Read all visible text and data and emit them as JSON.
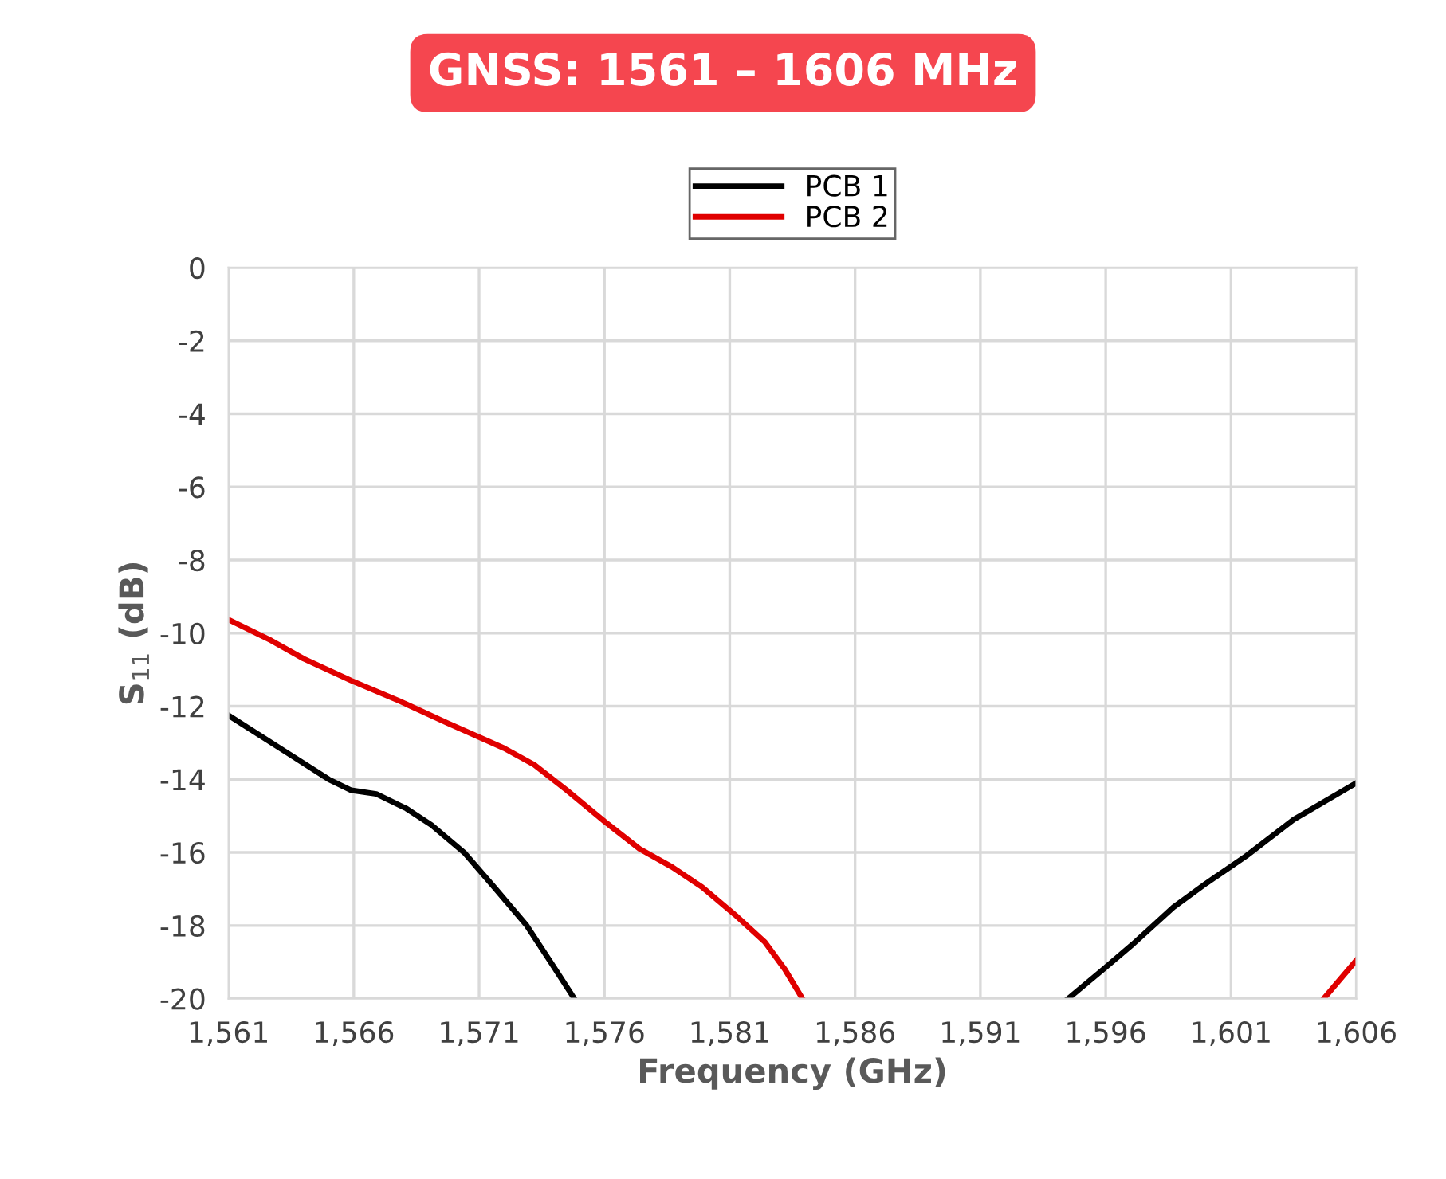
{
  "chart_data": {
    "type": "line",
    "title": "GNSS: 1561 – 1606 MHz",
    "xlabel": "Frequency (GHz)",
    "ylabel": "S$_{11}$ (dB)",
    "xlim": [
      1561,
      1606
    ],
    "ylim": [
      -20,
      0
    ],
    "xticks": [
      {
        "value": 1561,
        "label": "1,561"
      },
      {
        "value": 1566,
        "label": "1,566"
      },
      {
        "value": 1571,
        "label": "1,571"
      },
      {
        "value": 1576,
        "label": "1,576"
      },
      {
        "value": 1581,
        "label": "1,581"
      },
      {
        "value": 1586,
        "label": "1,586"
      },
      {
        "value": 1591,
        "label": "1,591"
      },
      {
        "value": 1596,
        "label": "1,596"
      },
      {
        "value": 1601,
        "label": "1,601"
      },
      {
        "value": 1606,
        "label": "1,606"
      }
    ],
    "yticks": [
      -20,
      -18,
      -16,
      -14,
      -12,
      -10,
      -8,
      -6,
      -4,
      -2,
      0
    ],
    "grid": true,
    "legend": "top",
    "marker": "none",
    "line_style": "solid",
    "series": [
      {
        "name": "PCB 1",
        "color": "#000000",
        "x": [
          1561,
          1563.4,
          1565.0,
          1565.9,
          1566.9,
          1568.1,
          1569.1,
          1570.4,
          1571.6,
          1572.9,
          1573.9,
          1574.8,
          1584,
          1594.5,
          1595.9,
          1597.1,
          1598.7,
          1600.0,
          1601.6,
          1603.5,
          1606
        ],
        "values": [
          -12.25,
          -13.3,
          -14.0,
          -14.3,
          -14.4,
          -14.8,
          -15.25,
          -16.0,
          -16.95,
          -18.0,
          -19.05,
          -20,
          null,
          -20,
          -19.2,
          -18.5,
          -17.5,
          -16.85,
          -16.1,
          -15.1,
          -14.1
        ]
      },
      {
        "name": "PCB 2",
        "color": "#e00000",
        "x": [
          1561,
          1562.7,
          1564.0,
          1565.9,
          1567.8,
          1569.7,
          1572.0,
          1573.2,
          1574.5,
          1576.0,
          1577.4,
          1578.7,
          1579.9,
          1581.2,
          1582.4,
          1583.2,
          1583.9,
          1594,
          1604.7,
          1606
        ],
        "values": [
          -9.63,
          -10.2,
          -10.7,
          -11.3,
          -11.85,
          -12.45,
          -13.15,
          -13.6,
          -14.3,
          -15.15,
          -15.9,
          -16.4,
          -16.95,
          -17.7,
          -18.45,
          -19.2,
          -20,
          null,
          -20,
          -18.95
        ]
      }
    ]
  }
}
